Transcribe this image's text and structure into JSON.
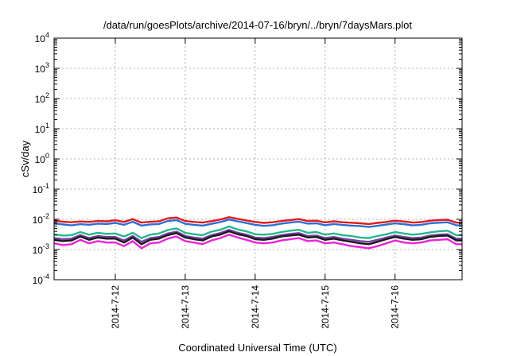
{
  "chart_data": {
    "type": "line",
    "title": "/data/run/goesPlots/archive/2014-07-16/bryn/../bryn/7daysMars.plot",
    "xlabel": "Coordinated Universal Time (UTC)",
    "ylabel": "cSv/day",
    "y_scale": "log",
    "ylim": [
      0.0001,
      10000
    ],
    "y_ticks": [
      {
        "base": "10",
        "exp": "-4",
        "value": 0.0001
      },
      {
        "base": "10",
        "exp": "-3",
        "value": 0.001
      },
      {
        "base": "10",
        "exp": "-2",
        "value": 0.01
      },
      {
        "base": "10",
        "exp": "-1",
        "value": 0.1
      },
      {
        "base": "10",
        "exp": "0",
        "value": 1
      },
      {
        "base": "10",
        "exp": "1",
        "value": 10
      },
      {
        "base": "10",
        "exp": "2",
        "value": 100
      },
      {
        "base": "10",
        "exp": "3",
        "value": 1000
      },
      {
        "base": "10",
        "exp": "4",
        "value": 10000
      }
    ],
    "xlim": [
      "2014-07-11 03:00",
      "2014-07-16 23:00"
    ],
    "x_ticks": [
      {
        "label": "2014-7-12",
        "value": "2014-07-12"
      },
      {
        "label": "2014-7-13",
        "value": "2014-07-13"
      },
      {
        "label": "2014-7-14",
        "value": "2014-07-14"
      },
      {
        "label": "2014-7-15",
        "value": "2014-07-15"
      },
      {
        "label": "2014-7-16",
        "value": "2014-07-16"
      }
    ],
    "grid": true,
    "x": [
      "2014-07-11 03:00",
      "2014-07-11 06:00",
      "2014-07-11 09:00",
      "2014-07-11 12:00",
      "2014-07-11 15:00",
      "2014-07-11 18:00",
      "2014-07-11 21:00",
      "2014-07-12 00:00",
      "2014-07-12 03:00",
      "2014-07-12 06:00",
      "2014-07-12 09:00",
      "2014-07-12 12:00",
      "2014-07-12 15:00",
      "2014-07-12 18:00",
      "2014-07-12 21:00",
      "2014-07-13 00:00",
      "2014-07-13 03:00",
      "2014-07-13 06:00",
      "2014-07-13 09:00",
      "2014-07-13 12:00",
      "2014-07-13 15:00",
      "2014-07-13 18:00",
      "2014-07-13 21:00",
      "2014-07-14 00:00",
      "2014-07-14 03:00",
      "2014-07-14 06:00",
      "2014-07-14 09:00",
      "2014-07-14 12:00",
      "2014-07-14 15:00",
      "2014-07-14 18:00",
      "2014-07-14 21:00",
      "2014-07-15 00:00",
      "2014-07-15 03:00",
      "2014-07-15 06:00",
      "2014-07-15 09:00",
      "2014-07-15 12:00",
      "2014-07-15 15:00",
      "2014-07-15 18:00",
      "2014-07-15 21:00",
      "2014-07-16 00:00",
      "2014-07-16 03:00",
      "2014-07-16 06:00",
      "2014-07-16 09:00",
      "2014-07-16 12:00",
      "2014-07-16 15:00",
      "2014-07-16 18:00",
      "2014-07-16 21:00",
      "2014-07-16 23:00"
    ],
    "series": [
      {
        "color": "#e41a1c",
        "values": [
          0.0092,
          0.0083,
          0.008,
          0.0085,
          0.0082,
          0.0088,
          0.0086,
          0.0093,
          0.0082,
          0.0102,
          0.0078,
          0.0083,
          0.0086,
          0.0108,
          0.0115,
          0.0088,
          0.0082,
          0.0078,
          0.0087,
          0.0098,
          0.0118,
          0.0104,
          0.0092,
          0.0082,
          0.0076,
          0.008,
          0.0088,
          0.0094,
          0.0102,
          0.0088,
          0.009,
          0.0079,
          0.0086,
          0.008,
          0.0077,
          0.0074,
          0.007,
          0.0076,
          0.0082,
          0.009,
          0.0085,
          0.0078,
          0.0081,
          0.009,
          0.0094,
          0.0097,
          0.0078,
          0.0076
        ]
      },
      {
        "color": "#2a6fd8",
        "values": [
          0.0074,
          0.0068,
          0.0063,
          0.0069,
          0.0066,
          0.0072,
          0.007,
          0.0076,
          0.0066,
          0.0083,
          0.0062,
          0.0068,
          0.007,
          0.0088,
          0.0094,
          0.0071,
          0.0066,
          0.0062,
          0.0071,
          0.0081,
          0.0098,
          0.0086,
          0.0075,
          0.0066,
          0.0061,
          0.0064,
          0.0072,
          0.0078,
          0.0084,
          0.0072,
          0.0074,
          0.0064,
          0.007,
          0.0065,
          0.0062,
          0.006,
          0.0056,
          0.0061,
          0.0067,
          0.0074,
          0.0069,
          0.0063,
          0.0066,
          0.0074,
          0.0077,
          0.008,
          0.0064,
          0.0061
        ]
      },
      {
        "color": "#22b88c",
        "values": [
          0.0032,
          0.0029,
          0.003,
          0.0038,
          0.0031,
          0.0036,
          0.0033,
          0.0034,
          0.0027,
          0.0036,
          0.0024,
          0.0031,
          0.0034,
          0.0044,
          0.005,
          0.0036,
          0.0032,
          0.003,
          0.0039,
          0.0045,
          0.0058,
          0.0046,
          0.004,
          0.0032,
          0.0031,
          0.0033,
          0.0038,
          0.0042,
          0.0045,
          0.0036,
          0.0038,
          0.0031,
          0.0034,
          0.003,
          0.0028,
          0.0025,
          0.0024,
          0.0028,
          0.0032,
          0.0038,
          0.0034,
          0.0031,
          0.0033,
          0.0037,
          0.004,
          0.0042,
          0.003,
          0.003
        ]
      },
      {
        "color": "#7a3fa0",
        "values": [
          0.0024,
          0.0022,
          0.0023,
          0.003,
          0.0024,
          0.0028,
          0.0026,
          0.0026,
          0.002,
          0.0028,
          0.0018,
          0.0024,
          0.0026,
          0.0034,
          0.0039,
          0.0028,
          0.0025,
          0.0023,
          0.003,
          0.0035,
          0.0045,
          0.0036,
          0.0031,
          0.0025,
          0.0024,
          0.0026,
          0.003,
          0.0033,
          0.0035,
          0.0028,
          0.0029,
          0.0024,
          0.0026,
          0.0023,
          0.0021,
          0.0019,
          0.0018,
          0.0021,
          0.0025,
          0.0029,
          0.0026,
          0.0024,
          0.0025,
          0.0029,
          0.0031,
          0.0032,
          0.0023,
          0.0023
        ]
      },
      {
        "color": "#1a1a1a",
        "values": [
          0.0021,
          0.0019,
          0.002,
          0.0027,
          0.0021,
          0.0025,
          0.0023,
          0.0023,
          0.0017,
          0.0025,
          0.0015,
          0.0021,
          0.0023,
          0.003,
          0.0035,
          0.0025,
          0.0022,
          0.002,
          0.0027,
          0.0031,
          0.004,
          0.0032,
          0.0028,
          0.0022,
          0.0021,
          0.0023,
          0.0027,
          0.0029,
          0.0031,
          0.0025,
          0.0026,
          0.0021,
          0.0023,
          0.002,
          0.0018,
          0.0016,
          0.0015,
          0.0018,
          0.0022,
          0.0026,
          0.0023,
          0.0021,
          0.0022,
          0.0026,
          0.0028,
          0.0029,
          0.002,
          0.002
        ]
      },
      {
        "color": "#ee22dd",
        "values": [
          0.0016,
          0.0014,
          0.0015,
          0.0021,
          0.0016,
          0.0019,
          0.0017,
          0.0017,
          0.0013,
          0.0019,
          0.0011,
          0.0016,
          0.0017,
          0.0023,
          0.0027,
          0.0019,
          0.0017,
          0.0015,
          0.002,
          0.0024,
          0.0031,
          0.0025,
          0.0021,
          0.0017,
          0.0016,
          0.0017,
          0.002,
          0.0022,
          0.0024,
          0.0019,
          0.002,
          0.0016,
          0.0017,
          0.0015,
          0.0013,
          0.0012,
          0.0011,
          0.0013,
          0.0016,
          0.002,
          0.0017,
          0.0016,
          0.0017,
          0.002,
          0.0021,
          0.0022,
          0.0015,
          0.0015
        ]
      }
    ]
  }
}
